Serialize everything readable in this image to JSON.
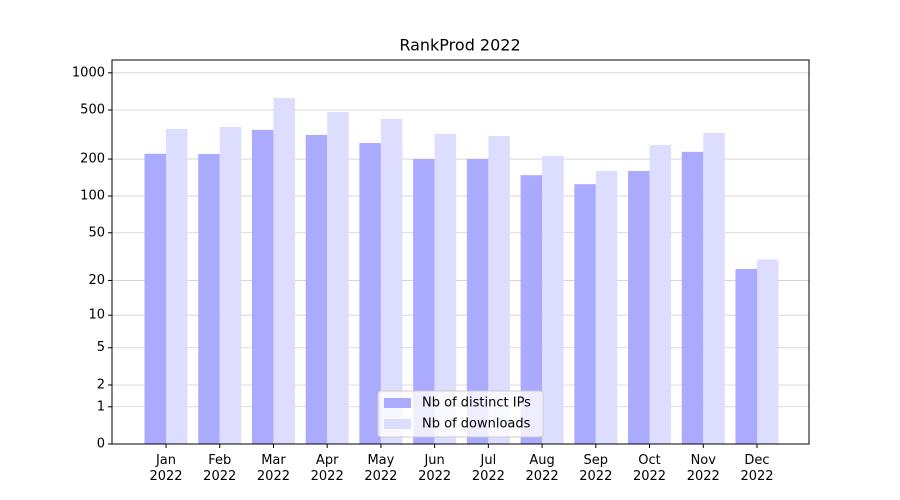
{
  "chart_data": {
    "type": "bar",
    "title": "RankProd 2022",
    "categories": [
      "Jan\n2022",
      "Feb\n2022",
      "Mar\n2022",
      "Apr\n2022",
      "May\n2022",
      "Jun\n2022",
      "Jul\n2022",
      "Aug\n2022",
      "Sep\n2022",
      "Oct\n2022",
      "Nov\n2022",
      "Dec\n2022"
    ],
    "series": [
      {
        "name": "Nb of distinct IPs",
        "color": "#aaaaff",
        "values": [
          221,
          220,
          345,
          314,
          270,
          200,
          200,
          148,
          125,
          160,
          229,
          25
        ]
      },
      {
        "name": "Nb of downloads",
        "color": "#ddddff",
        "values": [
          351,
          364,
          626,
          482,
          423,
          320,
          308,
          212,
          160,
          260,
          326,
          30
        ]
      }
    ],
    "yscale": "log1p",
    "ylim": [
      0,
      1270
    ],
    "yticks": [
      0,
      1,
      2,
      5,
      10,
      20,
      50,
      100,
      200,
      500,
      1000
    ],
    "grid": true,
    "legend": "lower center"
  }
}
